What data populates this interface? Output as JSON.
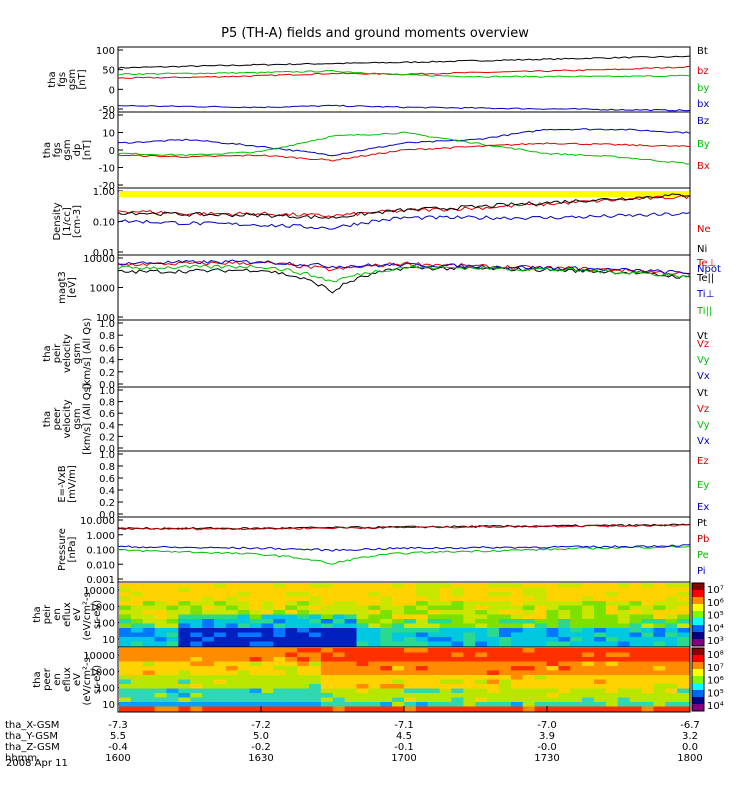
{
  "title": "P5 (TH-A) fields and ground moments overview",
  "date": "2008 Apr 11",
  "chart_data": [
    {
      "type": "line",
      "panel": "tha_fgs_gsm",
      "ylabel": [
        "tha",
        "fgs",
        "gsm",
        "[nT]"
      ],
      "yticks": [
        "100",
        "50",
        "0",
        "-50"
      ],
      "ylim": [
        -60,
        105
      ],
      "series": [
        {
          "name": "Bt",
          "color": "#000000",
          "values": [
            52,
            56,
            60,
            63,
            66,
            70,
            74,
            78,
            81
          ]
        },
        {
          "name": "bz",
          "color": "#e00000",
          "values": [
            26,
            28,
            32,
            38,
            36,
            40,
            44,
            48,
            55
          ]
        },
        {
          "name": "by",
          "color": "#00c000",
          "values": [
            36,
            38,
            40,
            44,
            34,
            30,
            30,
            30,
            32
          ]
        },
        {
          "name": "bx",
          "color": "#0000c0",
          "values": [
            -44,
            -46,
            -48,
            -44,
            -48,
            -50,
            -52,
            -54,
            -56
          ]
        }
      ]
    },
    {
      "type": "line",
      "panel": "tha_fgs_gsm_dp",
      "ylabel": [
        "tha",
        "fgs",
        "gsm",
        "dp",
        "[nT]"
      ],
      "yticks": [
        "20",
        "10",
        "0",
        "-10",
        "-20"
      ],
      "ylim": [
        -22,
        22
      ],
      "series": [
        {
          "name": "Bz",
          "color": "#0000c0",
          "values": [
            4,
            6,
            2,
            -3,
            4,
            6,
            12,
            12,
            10
          ]
        },
        {
          "name": "By",
          "color": "#00c000",
          "values": [
            -2,
            -3,
            -1,
            8,
            10,
            4,
            -2,
            -4,
            -8
          ]
        },
        {
          "name": "Bx",
          "color": "#e00000",
          "values": [
            -3,
            -4,
            -3,
            -6,
            0,
            2,
            4,
            3,
            2
          ]
        }
      ]
    },
    {
      "type": "line",
      "panel": "density",
      "ylabel": [
        "Density",
        "[1/cc]",
        "[cm-3]"
      ],
      "yticks": [
        "1.00",
        "0.10",
        "0.01"
      ],
      "ylim": [
        0.01,
        1.3
      ],
      "log": true,
      "series": [
        {
          "name": "Ne",
          "color": "#e00000",
          "values": [
            0.25,
            0.2,
            0.2,
            0.17,
            0.25,
            0.3,
            0.4,
            0.55,
            0.7
          ]
        },
        {
          "name": "Ni",
          "color": "#000000",
          "values": [
            0.22,
            0.19,
            0.18,
            0.15,
            0.26,
            0.33,
            0.45,
            0.6,
            0.8
          ]
        },
        {
          "name": "Npot",
          "color": "#0000c0",
          "values": [
            0.12,
            0.1,
            0.09,
            0.07,
            0.15,
            0.15,
            0.15,
            0.17,
            0.2
          ]
        }
      ]
    },
    {
      "type": "line",
      "panel": "magt3",
      "ylabel": [
        "magt3",
        "[eV]"
      ],
      "yticks": [
        "10000",
        "1000",
        "100"
      ],
      "ylim": [
        100,
        10000
      ],
      "log": true,
      "series": [
        {
          "name": "Te⊥",
          "color": "#e00000",
          "values": [
            5000,
            5500,
            5800,
            3500,
            5500,
            4500,
            4000,
            3500,
            2500
          ]
        },
        {
          "name": "Te||",
          "color": "#000000",
          "values": [
            3000,
            3200,
            3500,
            700,
            4000,
            3800,
            3500,
            3000,
            2000
          ]
        },
        {
          "name": "Ti⊥",
          "color": "#0000c0",
          "values": [
            5500,
            6000,
            6200,
            4500,
            5000,
            4500,
            4000,
            3500,
            2800
          ]
        },
        {
          "name": "Ti||",
          "color": "#00c000",
          "values": [
            4000,
            4200,
            4500,
            1500,
            4200,
            4000,
            3600,
            3000,
            2200
          ]
        }
      ]
    },
    {
      "type": "line",
      "panel": "peir_velocity",
      "ylabel": [
        "tha",
        "peir",
        "velocity",
        "gsm",
        "[km/s] (All Qs)"
      ],
      "yticks": [
        "1.0",
        "0.8",
        "0.6",
        "0.4",
        "0.2",
        "0.0"
      ],
      "ylim": [
        0,
        1
      ],
      "series": [
        {
          "name": "Vt",
          "color": "#000000",
          "values": []
        },
        {
          "name": "Vz",
          "color": "#e00000",
          "values": []
        },
        {
          "name": "Vy",
          "color": "#00c000",
          "values": []
        },
        {
          "name": "Vx",
          "color": "#0000c0",
          "values": []
        }
      ]
    },
    {
      "type": "line",
      "panel": "peer_velocity",
      "ylabel": [
        "tha",
        "peer",
        "velocity",
        "gsm",
        "[km/s] (All Qs)"
      ],
      "yticks": [
        "1.0",
        "0.8",
        "0.6",
        "0.4",
        "0.2",
        "0.0"
      ],
      "ylim": [
        0,
        1
      ],
      "series": [
        {
          "name": "Vt",
          "color": "#000000",
          "values": []
        },
        {
          "name": "Vz",
          "color": "#e00000",
          "values": []
        },
        {
          "name": "Vy",
          "color": "#00c000",
          "values": []
        },
        {
          "name": "Vx",
          "color": "#0000c0",
          "values": []
        }
      ]
    },
    {
      "type": "line",
      "panel": "efield",
      "ylabel": [
        "E=-VxB",
        "[mV/m]"
      ],
      "yticks": [
        "1.0",
        "0.8",
        "0.6",
        "0.4",
        "0.2",
        "0.0"
      ],
      "ylim": [
        0,
        1
      ],
      "series": [
        {
          "name": "Ez",
          "color": "#e00000",
          "values": []
        },
        {
          "name": "Ey",
          "color": "#00c000",
          "values": []
        },
        {
          "name": "Ex",
          "color": "#0000c0",
          "values": []
        }
      ]
    },
    {
      "type": "line",
      "panel": "pressure",
      "ylabel": [
        "Pressure",
        "[nPa]"
      ],
      "yticks": [
        "10.000",
        "1.000",
        "0.100",
        "0.010",
        "0.001"
      ],
      "ylim": [
        0.001,
        10
      ],
      "log": true,
      "series": [
        {
          "name": "Pt",
          "color": "#000000",
          "values": [
            2.0,
            2.0,
            2.0,
            2.2,
            2.4,
            2.6,
            2.8,
            3.0,
            3.3
          ]
        },
        {
          "name": "Pb",
          "color": "#c00000",
          "values": [
            1.9,
            1.9,
            1.9,
            2.1,
            2.3,
            2.5,
            2.7,
            2.9,
            3.2
          ]
        },
        {
          "name": "Pe",
          "color": "#00c000",
          "values": [
            0.09,
            0.07,
            0.05,
            0.012,
            0.06,
            0.08,
            0.1,
            0.13,
            0.15
          ]
        },
        {
          "name": "Pi",
          "color": "#0000c0",
          "values": [
            0.15,
            0.13,
            0.12,
            0.09,
            0.12,
            0.13,
            0.14,
            0.15,
            0.18
          ]
        }
      ]
    },
    {
      "type": "heatmap",
      "panel": "peir_en_eflux",
      "ylabel": [
        "tha",
        "peir",
        "en",
        "eflux",
        "eV",
        "(eV/cm²-s-",
        "sr-eV)"
      ],
      "yticks": [
        "10000",
        "1000",
        "100",
        "10"
      ],
      "colorbar_ticks": [
        "10⁷",
        "10⁶",
        "10⁵",
        "10⁴",
        "10³"
      ]
    },
    {
      "type": "heatmap",
      "panel": "peer_en_eflux",
      "ylabel": [
        "tha",
        "peer",
        "en",
        "eflux",
        "eV",
        "(eV/cm²-s-",
        "sr-eV)"
      ],
      "yticks": [
        "10000",
        "1000",
        "100",
        "10"
      ],
      "colorbar_ticks": [
        "10⁸",
        "10⁷",
        "10⁶",
        "10⁵",
        "10⁴"
      ]
    }
  ],
  "xaxis": {
    "rows": [
      {
        "label": "tha_X-GSM",
        "values": [
          "-7.3",
          "-7.2",
          "-7.1",
          "-7.0",
          "-6.7"
        ]
      },
      {
        "label": "tha_Y-GSM",
        "values": [
          "5.5",
          "5.0",
          "4.5",
          "3.9",
          "3.2"
        ]
      },
      {
        "label": "tha_Z-GSM",
        "values": [
          "-0.4",
          "-0.2",
          "-0.1",
          "-0.0",
          "0.0"
        ]
      },
      {
        "label": "hhmm",
        "values": [
          "1600",
          "1630",
          "1700",
          "1730",
          "1800"
        ]
      }
    ]
  }
}
